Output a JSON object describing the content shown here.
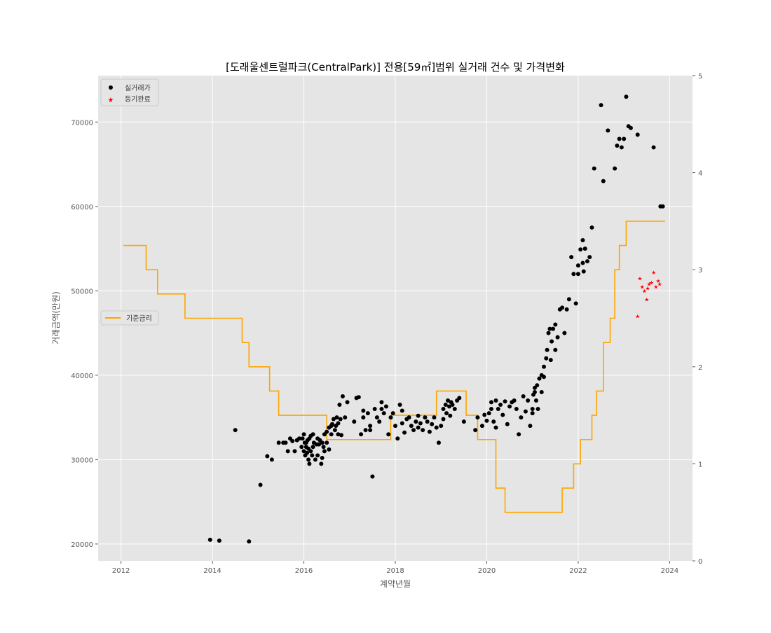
{
  "chart_data": {
    "type": "scatter",
    "title": "[도래울센트럴파크(CentralPark)] 전용[59㎡]범위 실거래 건수 및 가격변화",
    "xlabel": "계약년월",
    "ylabel": "거래금액(만원)",
    "xlim": [
      2011.5,
      2024.5
    ],
    "ylim": [
      18000,
      75500
    ],
    "y2lim": [
      0,
      5
    ],
    "x_ticks": [
      2012,
      2014,
      2016,
      2018,
      2020,
      2022,
      2024
    ],
    "y_ticks": [
      20000,
      30000,
      40000,
      50000,
      60000,
      70000
    ],
    "y2_ticks": [
      0,
      1,
      2,
      3,
      4,
      5
    ],
    "grid": true,
    "legend_main": {
      "placement": "upper-left",
      "entries": [
        {
          "label": "실거래가",
          "color": "#000000",
          "marker": "circle"
        },
        {
          "label": "등기완료",
          "color": "#ff0000",
          "marker": "star"
        }
      ]
    },
    "legend_secondary": {
      "placement": "center-left",
      "entries": [
        {
          "label": "기준금리",
          "color": "#ffa500",
          "marker": "line"
        }
      ]
    },
    "colors": {
      "background": "#e5e5e5",
      "grid": "#ffffff",
      "trade": "#000000",
      "registered": "#ff0000",
      "rate": "#ffa500",
      "text": "#555555"
    },
    "series": [
      {
        "name": "실거래가",
        "marker": "circle",
        "points": [
          [
            2013.95,
            20500
          ],
          [
            2014.15,
            20400
          ],
          [
            2014.5,
            33500
          ],
          [
            2014.8,
            20300
          ],
          [
            2015.05,
            27000
          ],
          [
            2015.2,
            30400
          ],
          [
            2015.3,
            30000
          ],
          [
            2015.45,
            32000
          ],
          [
            2015.55,
            32000
          ],
          [
            2015.6,
            32000
          ],
          [
            2015.65,
            31000
          ],
          [
            2015.7,
            32500
          ],
          [
            2015.75,
            32200
          ],
          [
            2015.8,
            31000
          ],
          [
            2015.85,
            32300
          ],
          [
            2015.9,
            32500
          ],
          [
            2015.95,
            31500
          ],
          [
            2015.97,
            32500
          ],
          [
            2016.0,
            33000
          ],
          [
            2016.0,
            31000
          ],
          [
            2016.02,
            32000
          ],
          [
            2016.03,
            30500
          ],
          [
            2016.05,
            32000
          ],
          [
            2016.05,
            31500
          ],
          [
            2016.07,
            30800
          ],
          [
            2016.08,
            32300
          ],
          [
            2016.1,
            30000
          ],
          [
            2016.1,
            31300
          ],
          [
            2016.12,
            32500
          ],
          [
            2016.12,
            29500
          ],
          [
            2016.15,
            31000
          ],
          [
            2016.15,
            32800
          ],
          [
            2016.18,
            30500
          ],
          [
            2016.2,
            33000
          ],
          [
            2016.2,
            31500
          ],
          [
            2016.22,
            32000
          ],
          [
            2016.25,
            30000
          ],
          [
            2016.28,
            31800
          ],
          [
            2016.3,
            32500
          ],
          [
            2016.3,
            30500
          ],
          [
            2016.33,
            31800
          ],
          [
            2016.35,
            32300
          ],
          [
            2016.38,
            29500
          ],
          [
            2016.4,
            32000
          ],
          [
            2016.4,
            30200
          ],
          [
            2016.43,
            31500
          ],
          [
            2016.45,
            33000
          ],
          [
            2016.45,
            31000
          ],
          [
            2016.5,
            33300
          ],
          [
            2016.5,
            32000
          ],
          [
            2016.55,
            33800
          ],
          [
            2016.55,
            31200
          ],
          [
            2016.6,
            34000
          ],
          [
            2016.6,
            33000
          ],
          [
            2016.62,
            34200
          ],
          [
            2016.65,
            34800
          ],
          [
            2016.68,
            33500
          ],
          [
            2016.7,
            34000
          ],
          [
            2016.72,
            35000
          ],
          [
            2016.75,
            34300
          ],
          [
            2016.75,
            33000
          ],
          [
            2016.78,
            36500
          ],
          [
            2016.8,
            34800
          ],
          [
            2016.82,
            32900
          ],
          [
            2016.85,
            37500
          ],
          [
            2016.9,
            35000
          ],
          [
            2016.95,
            36800
          ],
          [
            2017.1,
            34500
          ],
          [
            2017.15,
            37300
          ],
          [
            2017.2,
            37400
          ],
          [
            2017.25,
            33000
          ],
          [
            2017.3,
            35800
          ],
          [
            2017.3,
            35000
          ],
          [
            2017.35,
            33500
          ],
          [
            2017.4,
            35500
          ],
          [
            2017.45,
            34000
          ],
          [
            2017.45,
            33500
          ],
          [
            2017.5,
            28000
          ],
          [
            2017.55,
            36000
          ],
          [
            2017.6,
            35000
          ],
          [
            2017.65,
            34500
          ],
          [
            2017.7,
            36000
          ],
          [
            2017.7,
            36800
          ],
          [
            2017.75,
            35500
          ],
          [
            2017.8,
            36300
          ],
          [
            2017.85,
            33000
          ],
          [
            2017.9,
            35000
          ],
          [
            2017.95,
            35500
          ],
          [
            2018.0,
            34000
          ],
          [
            2018.05,
            32500
          ],
          [
            2018.1,
            36500
          ],
          [
            2018.15,
            34300
          ],
          [
            2018.15,
            35800
          ],
          [
            2018.2,
            33200
          ],
          [
            2018.25,
            34800
          ],
          [
            2018.3,
            35000
          ],
          [
            2018.35,
            34000
          ],
          [
            2018.4,
            33500
          ],
          [
            2018.45,
            34500
          ],
          [
            2018.5,
            35200
          ],
          [
            2018.5,
            33800
          ],
          [
            2018.55,
            34300
          ],
          [
            2018.6,
            33500
          ],
          [
            2018.65,
            35000
          ],
          [
            2018.7,
            34500
          ],
          [
            2018.75,
            33300
          ],
          [
            2018.8,
            34200
          ],
          [
            2018.85,
            35000
          ],
          [
            2018.9,
            33800
          ],
          [
            2018.95,
            32000
          ],
          [
            2019.0,
            34000
          ],
          [
            2019.05,
            34800
          ],
          [
            2019.05,
            36000
          ],
          [
            2019.1,
            36500
          ],
          [
            2019.12,
            35500
          ],
          [
            2019.15,
            37000
          ],
          [
            2019.18,
            36300
          ],
          [
            2019.2,
            35200
          ],
          [
            2019.22,
            36800
          ],
          [
            2019.25,
            36500
          ],
          [
            2019.3,
            36000
          ],
          [
            2019.35,
            37000
          ],
          [
            2019.4,
            37300
          ],
          [
            2019.5,
            34500
          ],
          [
            2019.75,
            33500
          ],
          [
            2019.8,
            35000
          ],
          [
            2019.9,
            34000
          ],
          [
            2019.95,
            35300
          ],
          [
            2020.0,
            34600
          ],
          [
            2020.05,
            35500
          ],
          [
            2020.1,
            36000
          ],
          [
            2020.1,
            36800
          ],
          [
            2020.15,
            34500
          ],
          [
            2020.2,
            33800
          ],
          [
            2020.2,
            37000
          ],
          [
            2020.25,
            36000
          ],
          [
            2020.3,
            36500
          ],
          [
            2020.35,
            35300
          ],
          [
            2020.4,
            36900
          ],
          [
            2020.45,
            34200
          ],
          [
            2020.5,
            36300
          ],
          [
            2020.55,
            36800
          ],
          [
            2020.6,
            37000
          ],
          [
            2020.65,
            36000
          ],
          [
            2020.7,
            33000
          ],
          [
            2020.75,
            35000
          ],
          [
            2020.8,
            37500
          ],
          [
            2020.85,
            35700
          ],
          [
            2020.9,
            37000
          ],
          [
            2020.95,
            34000
          ],
          [
            2021.0,
            35500
          ],
          [
            2021.0,
            36000
          ],
          [
            2021.02,
            37700
          ],
          [
            2021.05,
            38500
          ],
          [
            2021.05,
            38000
          ],
          [
            2021.08,
            37000
          ],
          [
            2021.1,
            38800
          ],
          [
            2021.12,
            36000
          ],
          [
            2021.15,
            39600
          ],
          [
            2021.2,
            40000
          ],
          [
            2021.2,
            38000
          ],
          [
            2021.25,
            41000
          ],
          [
            2021.25,
            39800
          ],
          [
            2021.3,
            42000
          ],
          [
            2021.32,
            43000
          ],
          [
            2021.35,
            45000
          ],
          [
            2021.38,
            45500
          ],
          [
            2021.4,
            41800
          ],
          [
            2021.42,
            44000
          ],
          [
            2021.45,
            45500
          ],
          [
            2021.5,
            46000
          ],
          [
            2021.5,
            43000
          ],
          [
            2021.55,
            44500
          ],
          [
            2021.6,
            47800
          ],
          [
            2021.65,
            48000
          ],
          [
            2021.7,
            45000
          ],
          [
            2021.75,
            47800
          ],
          [
            2021.8,
            49000
          ],
          [
            2021.85,
            54000
          ],
          [
            2021.9,
            52000
          ],
          [
            2021.95,
            48500
          ],
          [
            2022.0,
            53000
          ],
          [
            2022.0,
            52000
          ],
          [
            2022.05,
            54900
          ],
          [
            2022.1,
            56000
          ],
          [
            2022.1,
            53300
          ],
          [
            2022.12,
            52300
          ],
          [
            2022.15,
            55000
          ],
          [
            2022.2,
            53500
          ],
          [
            2022.25,
            54000
          ],
          [
            2022.3,
            57500
          ],
          [
            2022.35,
            64500
          ],
          [
            2022.5,
            72000
          ],
          [
            2022.55,
            63000
          ],
          [
            2022.65,
            69000
          ],
          [
            2022.8,
            64500
          ],
          [
            2022.85,
            67200
          ],
          [
            2022.9,
            68000
          ],
          [
            2022.95,
            67000
          ],
          [
            2023.0,
            68000
          ],
          [
            2023.05,
            73000
          ],
          [
            2023.1,
            69500
          ],
          [
            2023.15,
            69300
          ],
          [
            2023.3,
            68500
          ],
          [
            2023.65,
            67000
          ],
          [
            2023.8,
            60000
          ],
          [
            2023.85,
            60000
          ]
        ]
      },
      {
        "name": "등기완료",
        "marker": "star",
        "points": [
          [
            2023.3,
            47000
          ],
          [
            2023.35,
            51500
          ],
          [
            2023.4,
            50500
          ],
          [
            2023.45,
            50000
          ],
          [
            2023.5,
            49000
          ],
          [
            2023.52,
            50300
          ],
          [
            2023.55,
            50800
          ],
          [
            2023.6,
            51000
          ],
          [
            2023.65,
            52200
          ],
          [
            2023.7,
            50500
          ],
          [
            2023.75,
            51200
          ],
          [
            2023.78,
            50800
          ]
        ]
      },
      {
        "name": "기준금리",
        "marker": "step",
        "points": [
          [
            2012.05,
            3.25
          ],
          [
            2012.55,
            3.25
          ],
          [
            2012.55,
            3.0
          ],
          [
            2012.8,
            3.0
          ],
          [
            2012.8,
            2.75
          ],
          [
            2013.4,
            2.75
          ],
          [
            2013.4,
            2.5
          ],
          [
            2014.65,
            2.5
          ],
          [
            2014.65,
            2.25
          ],
          [
            2014.8,
            2.25
          ],
          [
            2014.8,
            2.0
          ],
          [
            2015.25,
            2.0
          ],
          [
            2015.25,
            1.75
          ],
          [
            2015.45,
            1.75
          ],
          [
            2015.45,
            1.5
          ],
          [
            2016.5,
            1.5
          ],
          [
            2016.5,
            1.25
          ],
          [
            2017.9,
            1.25
          ],
          [
            2017.9,
            1.5
          ],
          [
            2018.9,
            1.5
          ],
          [
            2018.9,
            1.75
          ],
          [
            2019.55,
            1.75
          ],
          [
            2019.55,
            1.5
          ],
          [
            2019.8,
            1.5
          ],
          [
            2019.8,
            1.25
          ],
          [
            2020.2,
            1.25
          ],
          [
            2020.2,
            0.75
          ],
          [
            2020.4,
            0.75
          ],
          [
            2020.4,
            0.5
          ],
          [
            2021.65,
            0.5
          ],
          [
            2021.65,
            0.75
          ],
          [
            2021.9,
            0.75
          ],
          [
            2021.9,
            1.0
          ],
          [
            2022.05,
            1.0
          ],
          [
            2022.05,
            1.25
          ],
          [
            2022.3,
            1.25
          ],
          [
            2022.3,
            1.5
          ],
          [
            2022.4,
            1.5
          ],
          [
            2022.4,
            1.75
          ],
          [
            2022.55,
            1.75
          ],
          [
            2022.55,
            2.25
          ],
          [
            2022.7,
            2.25
          ],
          [
            2022.7,
            2.5
          ],
          [
            2022.8,
            2.5
          ],
          [
            2022.8,
            3.0
          ],
          [
            2022.9,
            3.0
          ],
          [
            2022.9,
            3.25
          ],
          [
            2023.05,
            3.25
          ],
          [
            2023.05,
            3.5
          ],
          [
            2023.9,
            3.5
          ]
        ]
      }
    ]
  }
}
